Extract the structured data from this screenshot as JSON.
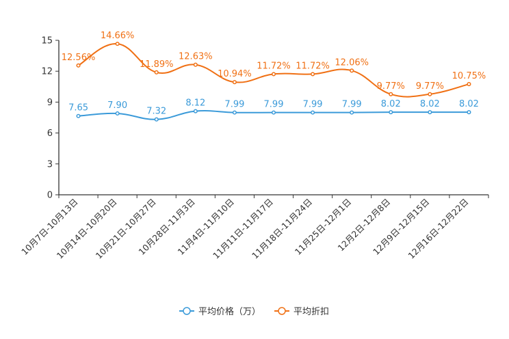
{
  "chart_data": {
    "type": "line",
    "title": "",
    "xlabel": "",
    "ylabel": "",
    "ylim": [
      0,
      15
    ],
    "yticks": [
      0,
      3,
      6,
      9,
      12,
      15
    ],
    "ytick_labels": [
      "0",
      "3",
      "6",
      "9",
      "12",
      "15"
    ],
    "grid": false,
    "legend_position": "bottom-center",
    "categories": [
      "10月7日-10月13日",
      "10月14日-10月20日",
      "10月21日-10月27日",
      "10月28日-11月3日",
      "11月4日-11月10日",
      "11月11日-11月17日",
      "11月18日-11月24日",
      "11月25日-12月1日",
      "12月2日-12月8日",
      "12月9日-12月15日",
      "12月16日-12月22日"
    ],
    "series": [
      {
        "name": "平均价格（万）",
        "color": "#3a9ad9",
        "values": [
          7.65,
          7.9,
          7.32,
          8.12,
          7.99,
          7.99,
          7.99,
          7.99,
          8.02,
          8.02,
          8.02
        ],
        "labels": [
          "7.65",
          "7.90",
          "7.32",
          "8.12",
          "7.99",
          "7.99",
          "7.99",
          "7.99",
          "8.02",
          "8.02",
          "8.02"
        ]
      },
      {
        "name": "平均折扣",
        "color": "#f07014",
        "values": [
          12.56,
          14.66,
          11.89,
          12.63,
          10.94,
          11.72,
          11.72,
          12.06,
          9.77,
          9.77,
          10.75
        ],
        "labels": [
          "12.56%",
          "14.66%",
          "11.89%",
          "12.63%",
          "10.94%",
          "11.72%",
          "11.72%",
          "12.06%",
          "9.77%",
          "9.77%",
          "10.75%"
        ]
      }
    ]
  }
}
